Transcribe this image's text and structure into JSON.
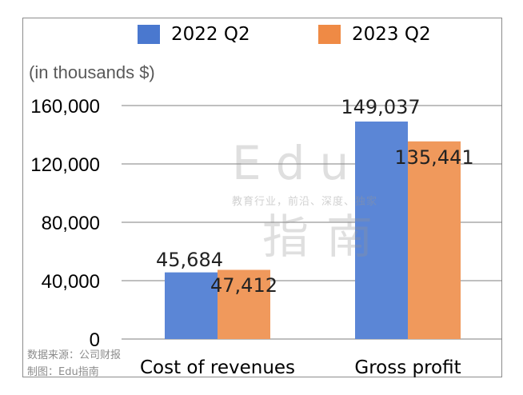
{
  "unit_label": "(in thousands $)",
  "source": {
    "line1": "数据来源：公司财报",
    "line2": "制图：Edu指南"
  },
  "watermark": {
    "big": "Edu",
    "small": "教育行业，前沿、深度、独家",
    "big2": "指南"
  },
  "colors": {
    "series_2022": "#5b86d6",
    "series_2023": "#f0995c",
    "legend_2022": "#4a78cf",
    "legend_2023": "#ef8a45",
    "gridline": "#7f7f7f"
  },
  "chart_data": {
    "type": "bar",
    "categories": [
      "Cost of revenues",
      "Gross profit"
    ],
    "series": [
      {
        "name": "2022 Q2",
        "values": [
          45684,
          149037
        ],
        "labels": [
          "45,684",
          "149,037"
        ]
      },
      {
        "name": "2023 Q2",
        "values": [
          47412,
          135441
        ],
        "labels": [
          "47,412",
          "135,441"
        ]
      }
    ],
    "ylim": [
      0,
      160000
    ],
    "yticks": [
      0,
      40000,
      80000,
      120000,
      160000
    ],
    "ytick_labels": [
      "0",
      "40,000",
      "80,000",
      "120,000",
      "160,000"
    ],
    "grid": true,
    "legend_position": "top"
  }
}
